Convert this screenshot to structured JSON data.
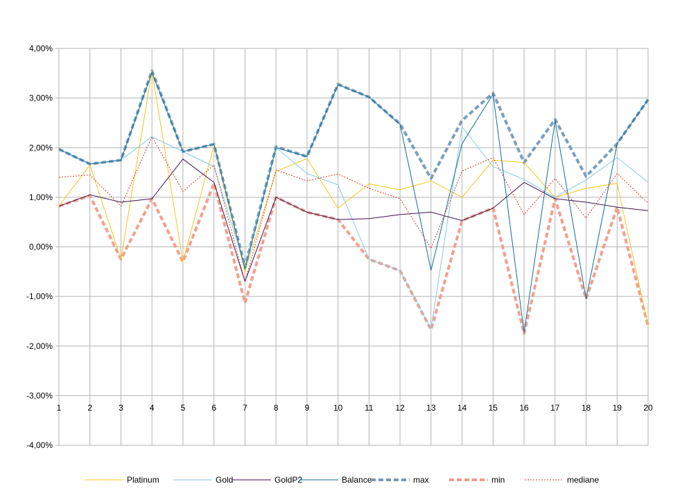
{
  "chart_data": {
    "type": "line",
    "title": "",
    "xlabel": "",
    "ylabel": "",
    "x": [
      1,
      2,
      3,
      4,
      5,
      6,
      7,
      8,
      9,
      10,
      11,
      12,
      13,
      14,
      15,
      16,
      17,
      18,
      19,
      20
    ],
    "x_tick_labels": [
      "1",
      "2",
      "3",
      "4",
      "5",
      "6",
      "7",
      "8",
      "9",
      "10",
      "11",
      "12",
      "13",
      "14",
      "15",
      "16",
      "17",
      "18",
      "19",
      "20"
    ],
    "ylim": [
      -4,
      4
    ],
    "y_ticks": [
      4,
      3,
      2,
      1,
      0,
      -1,
      -2,
      -3,
      -4
    ],
    "y_tick_labels": [
      "4,00%",
      "3,00%",
      "2,00%",
      "1,00%",
      "0,00%",
      "-1,00%",
      "-2,00%",
      "-3,00%",
      "-4,00%"
    ],
    "grid": true,
    "legend_position": "bottom",
    "series": [
      {
        "name": "Platinum",
        "color": "#f5c518",
        "style": "solid",
        "weight": "thin",
        "values": [
          0.82,
          1.65,
          -0.25,
          3.55,
          -0.3,
          2.05,
          -0.5,
          1.52,
          1.78,
          0.78,
          1.27,
          1.15,
          1.33,
          1.0,
          1.75,
          1.7,
          1.0,
          1.18,
          1.28,
          -1.6
        ]
      },
      {
        "name": "Gold",
        "color": "#83cae8",
        "style": "solid",
        "weight": "thin",
        "values": [
          1.97,
          1.67,
          1.75,
          2.22,
          1.92,
          1.62,
          -0.4,
          2.0,
          1.48,
          1.25,
          -0.25,
          -0.48,
          -1.65,
          2.42,
          1.62,
          1.36,
          1.0,
          1.35,
          1.8,
          1.3
        ]
      },
      {
        "name": "GoldP2",
        "color": "#3d0f4f",
        "style": "solid",
        "weight": "thin",
        "values": [
          0.82,
          1.05,
          0.9,
          0.97,
          1.77,
          1.3,
          -0.7,
          1.0,
          0.7,
          0.55,
          0.57,
          0.65,
          0.7,
          0.53,
          0.78,
          1.3,
          0.97,
          0.9,
          0.8,
          0.73
        ]
      },
      {
        "name": "Balance",
        "color": "#0b6e99",
        "style": "solid",
        "weight": "thin",
        "values": [
          1.97,
          1.67,
          1.75,
          3.52,
          1.92,
          2.07,
          -0.45,
          2.0,
          1.82,
          3.27,
          3.02,
          2.47,
          -0.47,
          2.08,
          3.08,
          -1.73,
          2.55,
          -1.05,
          2.08,
          2.97
        ]
      },
      {
        "name": "max",
        "color": "#7499b9",
        "style": "dash",
        "weight": "thick",
        "values": [
          1.97,
          1.67,
          1.75,
          3.55,
          1.92,
          2.07,
          -0.4,
          2.02,
          1.82,
          3.28,
          3.02,
          2.48,
          1.38,
          2.55,
          3.1,
          1.7,
          2.57,
          1.42,
          2.08,
          2.97
        ]
      },
      {
        "name": "min",
        "color": "#f29b88",
        "style": "dash",
        "weight": "thick",
        "values": [
          0.82,
          1.03,
          -0.25,
          0.97,
          -0.3,
          1.28,
          -1.13,
          1.0,
          0.7,
          0.55,
          -0.25,
          -0.48,
          -1.67,
          0.53,
          0.78,
          -1.75,
          0.97,
          -1.05,
          0.8,
          -1.6
        ]
      },
      {
        "name": "mediane",
        "color": "#d63a2a",
        "style": "dot",
        "weight": "thin",
        "values": [
          1.4,
          1.45,
          0.82,
          2.22,
          1.12,
          1.65,
          -0.7,
          1.55,
          1.33,
          1.47,
          1.18,
          0.97,
          -0.03,
          1.53,
          1.8,
          0.65,
          1.38,
          0.58,
          1.48,
          0.88
        ]
      }
    ]
  }
}
